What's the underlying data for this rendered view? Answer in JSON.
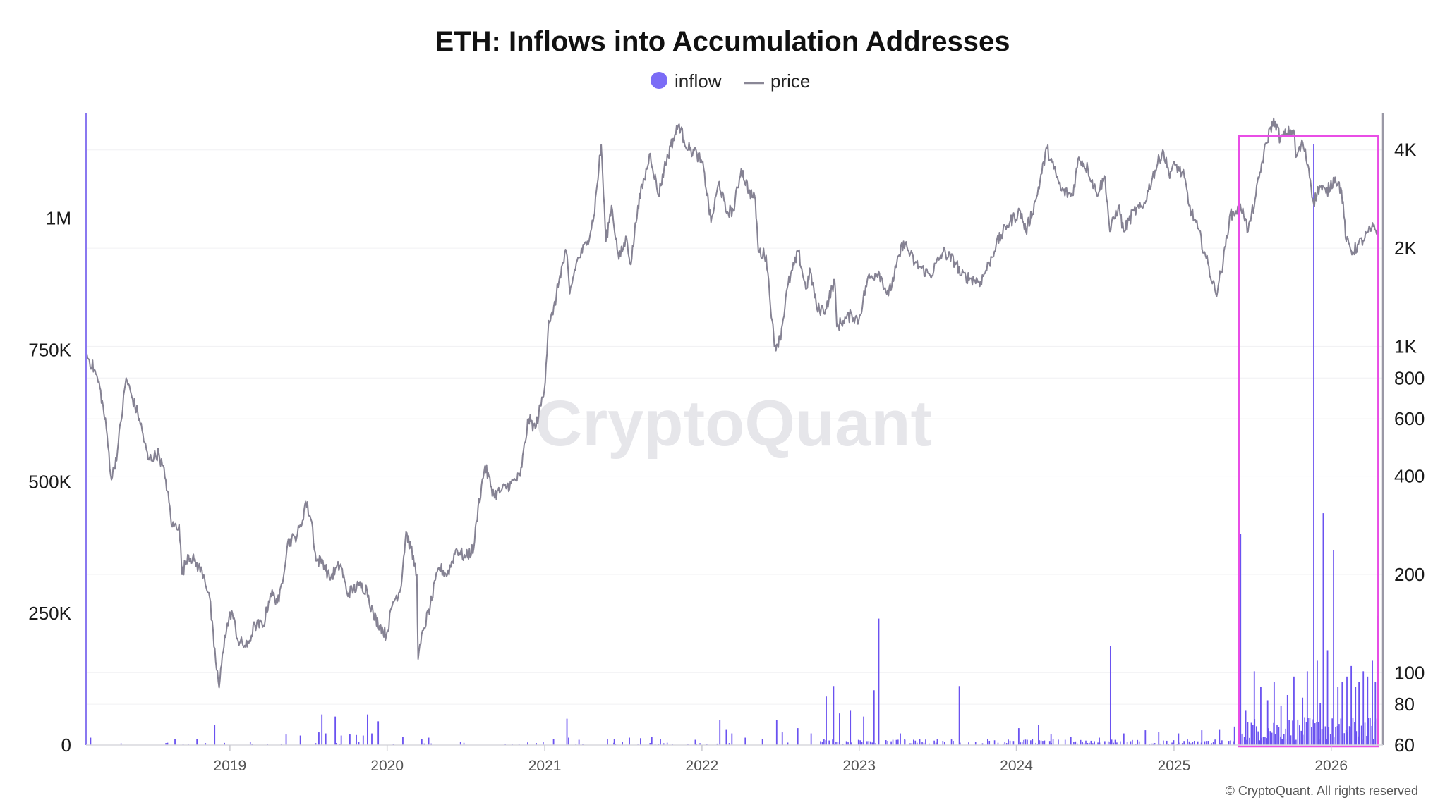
{
  "chart_data": {
    "type": "bar+line",
    "title": "ETH: Inflows into Accumulation Addresses",
    "watermark": "CryptoQuant",
    "copyright": "© CryptoQuant. All rights reserved",
    "legend": {
      "placement": "top-center",
      "items": [
        {
          "name": "inflow",
          "marker": "circle",
          "color": "#7b6cf6"
        },
        {
          "name": "price",
          "marker": "line",
          "color": "#8a8796"
        }
      ]
    },
    "colors": {
      "inflow": "#6a52f0",
      "price": "#858293",
      "highlight": "#e94ee6",
      "left_axis": "#8a78f0",
      "right_axis": "#9a98a6",
      "grid": "#f0f0f3"
    },
    "x_axis": {
      "type": "date",
      "range": [
        "2018-02-01",
        "2026-05-01"
      ],
      "tick_labels": [
        "2019",
        "2020",
        "2021",
        "2022",
        "2023",
        "2024",
        "2025",
        "2026"
      ]
    },
    "y_left": {
      "label": "",
      "series": "inflow",
      "range": [
        0,
        1200000
      ],
      "tick_labels": [
        {
          "value": 0,
          "label": "0"
        },
        {
          "value": 250000,
          "label": "250K"
        },
        {
          "value": 500000,
          "label": "500K"
        },
        {
          "value": 750000,
          "label": "750K"
        },
        {
          "value": 1000000,
          "label": "1M"
        }
      ]
    },
    "y_right": {
      "label": "",
      "series": "price",
      "scale": "log",
      "range": [
        60,
        5200
      ],
      "tick_labels": [
        {
          "value": 60,
          "label": "60"
        },
        {
          "value": 80,
          "label": "80"
        },
        {
          "value": 100,
          "label": "100"
        },
        {
          "value": 200,
          "label": "200"
        },
        {
          "value": 400,
          "label": "400"
        },
        {
          "value": 600,
          "label": "600"
        },
        {
          "value": 800,
          "label": "800"
        },
        {
          "value": 1000,
          "label": "1K"
        },
        {
          "value": 2000,
          "label": "2K"
        },
        {
          "value": 4000,
          "label": "4K"
        }
      ]
    },
    "highlight_region": {
      "x_start": "2025-06-01",
      "x_end": "2026-04-20"
    },
    "price_series": {
      "name": "price",
      "points": [
        [
          "2018-02-01",
          950
        ],
        [
          "2018-02-20",
          850
        ],
        [
          "2018-03-05",
          750
        ],
        [
          "2018-03-20",
          560
        ],
        [
          "2018-04-01",
          390
        ],
        [
          "2018-04-15",
          480
        ],
        [
          "2018-05-05",
          800
        ],
        [
          "2018-05-20",
          690
        ],
        [
          "2018-06-05",
          600
        ],
        [
          "2018-06-25",
          450
        ],
        [
          "2018-07-20",
          470
        ],
        [
          "2018-08-05",
          390
        ],
        [
          "2018-08-20",
          280
        ],
        [
          "2018-09-05",
          285
        ],
        [
          "2018-09-12",
          200
        ],
        [
          "2018-09-25",
          230
        ],
        [
          "2018-10-10",
          220
        ],
        [
          "2018-11-01",
          200
        ],
        [
          "2018-11-15",
          170
        ],
        [
          "2018-11-25",
          120
        ],
        [
          "2018-12-07",
          90
        ],
        [
          "2018-12-20",
          130
        ],
        [
          "2019-01-05",
          155
        ],
        [
          "2019-01-20",
          125
        ],
        [
          "2019-02-10",
          120
        ],
        [
          "2019-02-28",
          140
        ],
        [
          "2019-03-20",
          140
        ],
        [
          "2019-04-05",
          175
        ],
        [
          "2019-04-25",
          165
        ],
        [
          "2019-05-15",
          250
        ],
        [
          "2019-06-01",
          260
        ],
        [
          "2019-06-15",
          280
        ],
        [
          "2019-06-26",
          335
        ],
        [
          "2019-07-10",
          290
        ],
        [
          "2019-07-20",
          220
        ],
        [
          "2019-08-05",
          220
        ],
        [
          "2019-08-20",
          195
        ],
        [
          "2019-09-15",
          215
        ],
        [
          "2019-09-30",
          175
        ],
        [
          "2019-10-15",
          180
        ],
        [
          "2019-10-28",
          185
        ],
        [
          "2019-11-15",
          180
        ],
        [
          "2019-11-30",
          150
        ],
        [
          "2019-12-15",
          140
        ],
        [
          "2019-12-30",
          130
        ],
        [
          "2020-01-15",
          165
        ],
        [
          "2020-02-01",
          180
        ],
        [
          "2020-02-14",
          270
        ],
        [
          "2020-02-25",
          240
        ],
        [
          "2020-03-10",
          200
        ],
        [
          "2020-03-13",
          110
        ],
        [
          "2020-03-25",
          135
        ],
        [
          "2020-04-10",
          160
        ],
        [
          "2020-04-30",
          210
        ],
        [
          "2020-05-20",
          200
        ],
        [
          "2020-06-10",
          240
        ],
        [
          "2020-06-30",
          225
        ],
        [
          "2020-07-20",
          240
        ],
        [
          "2020-07-30",
          320
        ],
        [
          "2020-08-15",
          430
        ],
        [
          "2020-09-05",
          350
        ],
        [
          "2020-09-20",
          360
        ],
        [
          "2020-10-15",
          380
        ],
        [
          "2020-11-05",
          400
        ],
        [
          "2020-11-24",
          600
        ],
        [
          "2020-12-10",
          560
        ],
        [
          "2020-12-31",
          735
        ],
        [
          "2021-01-10",
          1200
        ],
        [
          "2021-01-20",
          1250
        ],
        [
          "2021-02-05",
          1650
        ],
        [
          "2021-02-20",
          1950
        ],
        [
          "2021-02-28",
          1450
        ],
        [
          "2021-03-15",
          1800
        ],
        [
          "2021-04-10",
          2100
        ],
        [
          "2021-04-25",
          2500
        ],
        [
          "2021-05-12",
          4150
        ],
        [
          "2021-05-23",
          2100
        ],
        [
          "2021-06-05",
          2700
        ],
        [
          "2021-06-22",
          1850
        ],
        [
          "2021-07-10",
          2150
        ],
        [
          "2021-07-20",
          1780
        ],
        [
          "2021-08-05",
          2700
        ],
        [
          "2021-08-20",
          3250
        ],
        [
          "2021-09-03",
          3900
        ],
        [
          "2021-09-22",
          2900
        ],
        [
          "2021-10-05",
          3500
        ],
        [
          "2021-10-20",
          4100
        ],
        [
          "2021-11-09",
          4800
        ],
        [
          "2021-11-20",
          4300
        ],
        [
          "2021-12-04",
          4000
        ],
        [
          "2021-12-20",
          3900
        ],
        [
          "2022-01-05",
          3500
        ],
        [
          "2022-01-22",
          2400
        ],
        [
          "2022-02-10",
          3200
        ],
        [
          "2022-02-25",
          2600
        ],
        [
          "2022-03-15",
          2600
        ],
        [
          "2022-04-02",
          3500
        ],
        [
          "2022-04-20",
          3000
        ],
        [
          "2022-05-05",
          2800
        ],
        [
          "2022-05-12",
          1950
        ],
        [
          "2022-05-30",
          1900
        ],
        [
          "2022-06-13",
          1200
        ],
        [
          "2022-06-18",
          1000
        ],
        [
          "2022-07-01",
          1050
        ],
        [
          "2022-07-20",
          1550
        ],
        [
          "2022-08-13",
          1950
        ],
        [
          "2022-08-30",
          1500
        ],
        [
          "2022-09-10",
          1700
        ],
        [
          "2022-09-25",
          1300
        ],
        [
          "2022-10-15",
          1300
        ],
        [
          "2022-11-05",
          1600
        ],
        [
          "2022-11-10",
          1150
        ],
        [
          "2022-11-25",
          1200
        ],
        [
          "2022-12-15",
          1250
        ],
        [
          "2022-12-31",
          1200
        ],
        [
          "2023-01-20",
          1600
        ],
        [
          "2023-02-15",
          1700
        ],
        [
          "2023-03-10",
          1430
        ],
        [
          "2023-04-14",
          2100
        ],
        [
          "2023-05-10",
          1800
        ],
        [
          "2023-06-15",
          1650
        ],
        [
          "2023-07-15",
          1950
        ],
        [
          "2023-08-15",
          1800
        ],
        [
          "2023-08-25",
          1650
        ],
        [
          "2023-09-15",
          1620
        ],
        [
          "2023-10-10",
          1580
        ],
        [
          "2023-10-30",
          1800
        ],
        [
          "2023-11-15",
          2050
        ],
        [
          "2023-12-10",
          2350
        ],
        [
          "2024-01-10",
          2600
        ],
        [
          "2024-01-23",
          2250
        ],
        [
          "2024-02-15",
          2800
        ],
        [
          "2024-03-12",
          4050
        ],
        [
          "2024-03-28",
          3500
        ],
        [
          "2024-04-15",
          3000
        ],
        [
          "2024-05-10",
          2900
        ],
        [
          "2024-05-25",
          3800
        ],
        [
          "2024-06-15",
          3500
        ],
        [
          "2024-07-05",
          2950
        ],
        [
          "2024-07-25",
          3300
        ],
        [
          "2024-08-05",
          2250
        ],
        [
          "2024-08-25",
          2700
        ],
        [
          "2024-09-06",
          2250
        ],
        [
          "2024-09-30",
          2600
        ],
        [
          "2024-10-20",
          2650
        ],
        [
          "2024-11-12",
          3300
        ],
        [
          "2024-12-06",
          4000
        ],
        [
          "2024-12-20",
          3400
        ],
        [
          "2025-01-05",
          3600
        ],
        [
          "2025-01-25",
          3300
        ],
        [
          "2025-02-05",
          2700
        ],
        [
          "2025-02-25",
          2300
        ],
        [
          "2025-03-15",
          1900
        ],
        [
          "2025-04-08",
          1450
        ],
        [
          "2025-04-25",
          1800
        ],
        [
          "2025-05-10",
          2500
        ],
        [
          "2025-05-25",
          2600
        ],
        [
          "2025-06-10",
          2650
        ],
        [
          "2025-06-22",
          2250
        ],
        [
          "2025-07-10",
          2900
        ],
        [
          "2025-07-25",
          3700
        ],
        [
          "2025-08-13",
          4700
        ],
        [
          "2025-08-24",
          4900
        ],
        [
          "2025-09-05",
          4300
        ],
        [
          "2025-09-20",
          4500
        ],
        [
          "2025-10-06",
          4600
        ],
        [
          "2025-10-11",
          3800
        ],
        [
          "2025-10-27",
          4200
        ],
        [
          "2025-11-10",
          3500
        ],
        [
          "2025-11-21",
          2750
        ],
        [
          "2025-12-05",
          3100
        ],
        [
          "2025-12-20",
          2950
        ],
        [
          "2026-01-10",
          3300
        ],
        [
          "2026-01-25",
          3000
        ],
        [
          "2026-02-05",
          2100
        ],
        [
          "2026-02-20",
          1950
        ],
        [
          "2026-03-05",
          2050
        ],
        [
          "2026-03-20",
          2150
        ],
        [
          "2026-04-05",
          2300
        ],
        [
          "2026-04-20",
          2250
        ]
      ]
    },
    "inflow_series": {
      "name": "inflow",
      "spikes": [
        [
          "2018-02-10",
          14000
        ],
        [
          "2018-08-25",
          12000
        ],
        [
          "2018-10-15",
          11000
        ],
        [
          "2018-11-25",
          38000
        ],
        [
          "2019-05-10",
          20000
        ],
        [
          "2019-06-12",
          18000
        ],
        [
          "2019-07-25",
          24000
        ],
        [
          "2019-08-01",
          58000
        ],
        [
          "2019-08-10",
          22000
        ],
        [
          "2019-09-01",
          54000
        ],
        [
          "2019-09-15",
          18000
        ],
        [
          "2019-10-05",
          20000
        ],
        [
          "2019-10-20",
          19000
        ],
        [
          "2019-11-05",
          18000
        ],
        [
          "2019-11-15",
          58000
        ],
        [
          "2019-11-25",
          22000
        ],
        [
          "2019-12-10",
          45000
        ],
        [
          "2020-02-05",
          15000
        ],
        [
          "2020-03-20",
          12000
        ],
        [
          "2020-04-05",
          14000
        ],
        [
          "2021-01-20",
          12000
        ],
        [
          "2021-02-20",
          50000
        ],
        [
          "2021-02-24",
          14000
        ],
        [
          "2021-03-20",
          10000
        ],
        [
          "2021-05-25",
          12000
        ],
        [
          "2021-06-10",
          12000
        ],
        [
          "2021-07-15",
          14000
        ],
        [
          "2021-08-10",
          13000
        ],
        [
          "2021-09-05",
          16000
        ],
        [
          "2021-09-25",
          12000
        ],
        [
          "2021-12-15",
          10000
        ],
        [
          "2022-02-10",
          48000
        ],
        [
          "2022-02-25",
          30000
        ],
        [
          "2022-03-10",
          22000
        ],
        [
          "2022-04-10",
          14000
        ],
        [
          "2022-05-20",
          12000
        ],
        [
          "2022-06-22",
          48000
        ],
        [
          "2022-07-05",
          24000
        ],
        [
          "2022-08-10",
          32000
        ],
        [
          "2022-09-10",
          22000
        ],
        [
          "2022-10-15",
          92000
        ],
        [
          "2022-11-01",
          112000
        ],
        [
          "2022-11-15",
          60000
        ],
        [
          "2022-12-10",
          65000
        ],
        [
          "2023-01-10",
          54000
        ],
        [
          "2023-02-03",
          104000
        ],
        [
          "2023-02-14",
          240000
        ],
        [
          "2023-04-05",
          22000
        ],
        [
          "2023-04-15",
          12000
        ],
        [
          "2023-05-20",
          12000
        ],
        [
          "2023-06-30",
          12000
        ],
        [
          "2023-08-20",
          112000
        ],
        [
          "2023-10-25",
          12000
        ],
        [
          "2024-01-05",
          32000
        ],
        [
          "2024-02-20",
          38000
        ],
        [
          "2024-03-20",
          20000
        ],
        [
          "2024-05-05",
          16000
        ],
        [
          "2024-07-10",
          14000
        ],
        [
          "2024-08-05",
          188000
        ],
        [
          "2024-09-05",
          22000
        ],
        [
          "2024-10-25",
          28000
        ],
        [
          "2024-11-25",
          25000
        ],
        [
          "2025-01-10",
          22000
        ],
        [
          "2025-03-05",
          28000
        ],
        [
          "2025-04-15",
          30000
        ],
        [
          "2025-05-20",
          35000
        ],
        [
          "2025-06-03",
          400000
        ],
        [
          "2025-06-15",
          65000
        ],
        [
          "2025-07-05",
          140000
        ],
        [
          "2025-07-20",
          110000
        ],
        [
          "2025-08-05",
          85000
        ],
        [
          "2025-08-20",
          120000
        ],
        [
          "2025-09-05",
          75000
        ],
        [
          "2025-09-20",
          95000
        ],
        [
          "2025-10-05",
          130000
        ],
        [
          "2025-10-25",
          90000
        ],
        [
          "2025-11-05",
          140000
        ],
        [
          "2025-11-20",
          1140000
        ],
        [
          "2025-11-28",
          160000
        ],
        [
          "2025-12-05",
          80000
        ],
        [
          "2025-12-12",
          440000
        ],
        [
          "2025-12-22",
          180000
        ],
        [
          "2026-01-05",
          370000
        ],
        [
          "2026-01-15",
          110000
        ],
        [
          "2026-01-25",
          120000
        ],
        [
          "2026-02-05",
          130000
        ],
        [
          "2026-02-15",
          150000
        ],
        [
          "2026-02-25",
          110000
        ],
        [
          "2026-03-05",
          120000
        ],
        [
          "2026-03-15",
          140000
        ],
        [
          "2026-03-25",
          130000
        ],
        [
          "2026-04-05",
          160000
        ],
        [
          "2026-04-12",
          120000
        ],
        [
          "2026-04-18",
          245000
        ]
      ]
    }
  }
}
